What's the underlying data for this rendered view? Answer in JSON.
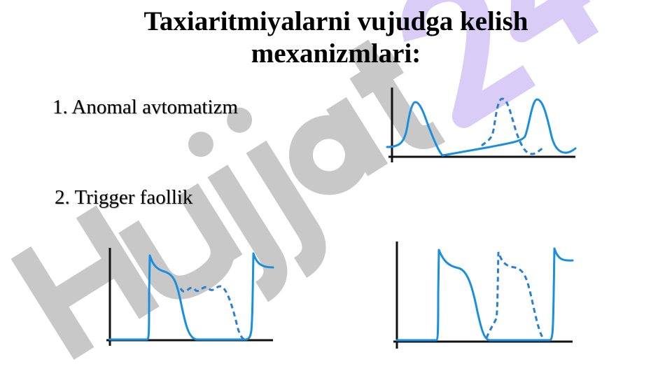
{
  "slide": {
    "title_line1": "Taxiaritmiyalarni vujudga kelish",
    "title_line2": "mexanizmlari:",
    "items": [
      {
        "label": "1. Anomal avtomatizm"
      },
      {
        "label": "2. Trigger faollik"
      }
    ]
  },
  "watermark": {
    "text_gray": "Hujjat",
    "text_purple": "24",
    "colors": {
      "gray": "#c8c8c8",
      "purple": "#d9ccf7"
    }
  },
  "colors": {
    "curve": "#1a8fe0",
    "axis": "#111111"
  }
}
